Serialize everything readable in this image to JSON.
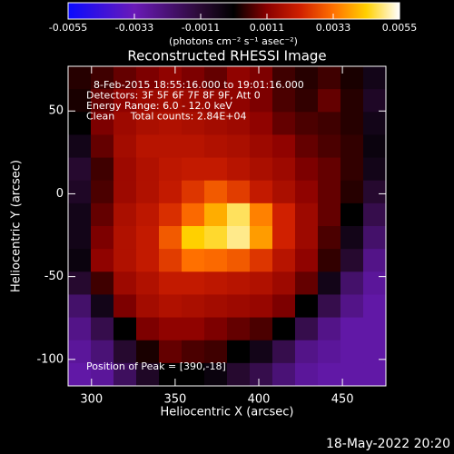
{
  "chart_data": {
    "type": "heatmap",
    "title": "Reconstructed RHESSI Image",
    "x_label": "Heliocentric X (arcsec)",
    "y_label": "Heliocentric Y (arcsec)",
    "annotations": [
      "8-Feb-2015 18:55:16.000 to 19:01:16.000",
      "Detectors: 3F 5F 6F 7F 8F 9F, Att 0",
      "Energy Range: 6.0 - 12.0 keV",
      "Clean     Total counts: 2.84E+04"
    ],
    "peak_label": "Position of Peak = [390,-18]",
    "timestamp": "18-May-2022 20:20",
    "xlim": [
      286,
      476
    ],
    "ylim": [
      -116,
      77
    ],
    "xticks": [
      300,
      350,
      400,
      450
    ],
    "yticks": [
      50,
      0,
      -50,
      -100
    ],
    "colorbar": {
      "label": "(photons cm⁻² s⁻¹ asec⁻²)",
      "range": [
        -0.0055,
        0.0055
      ],
      "ticks": [
        -0.0055,
        -0.0033,
        -0.0011,
        0.0011,
        0.0033,
        0.0055
      ],
      "stops": [
        [
          -0.0055,
          "#0a0aff"
        ],
        [
          -0.0033,
          "#6a1ab8"
        ],
        [
          -0.0011,
          "#2a0a34"
        ],
        [
          0,
          "#000000"
        ],
        [
          0.0011,
          "#8a0000"
        ],
        [
          0.0022,
          "#d02000"
        ],
        [
          0.0033,
          "#ff7000"
        ],
        [
          0.0044,
          "#ffd000"
        ],
        [
          0.0055,
          "#ffffff"
        ]
      ]
    },
    "z": [
      [
        0.0003,
        0.0005,
        0.0008,
        0.001,
        0.0012,
        0.001,
        0.0008,
        0.0012,
        0.001,
        0.0005,
        0.0003,
        0.0005,
        0.0002,
        -0.0005
      ],
      [
        0.0002,
        0.0008,
        0.0012,
        0.0014,
        0.0015,
        0.0014,
        0.0013,
        0.0012,
        0.001,
        0.0006,
        0.0004,
        0.0008,
        0.0003,
        -0.0008
      ],
      [
        0,
        0.001,
        0.0014,
        0.0016,
        0.0017,
        0.0016,
        0.0015,
        0.0014,
        0.0012,
        0.0008,
        0.0006,
        0.0005,
        0.0003,
        -0.0005
      ],
      [
        -0.0005,
        0.0008,
        0.0015,
        0.0018,
        0.0018,
        0.0018,
        0.0017,
        0.0016,
        0.0014,
        0.0012,
        0.0008,
        0.0006,
        0.0004,
        -0.0003
      ],
      [
        -0.001,
        0.0005,
        0.0014,
        0.0017,
        0.0019,
        0.002,
        0.002,
        0.0018,
        0.0016,
        0.0014,
        0.001,
        0.0008,
        0.0004,
        -0.0005
      ],
      [
        -0.0008,
        0.0006,
        0.0014,
        0.0017,
        0.002,
        0.0025,
        0.003,
        0.0026,
        0.002,
        0.0016,
        0.0012,
        0.0008,
        0.0003,
        -0.001
      ],
      [
        -0.0005,
        0.0008,
        0.0016,
        0.0019,
        0.0024,
        0.0032,
        0.004,
        0.0048,
        0.0035,
        0.0022,
        0.0014,
        0.0008,
        0,
        -0.0015
      ],
      [
        -0.0005,
        0.001,
        0.0017,
        0.002,
        0.003,
        0.0044,
        0.0046,
        0.005,
        0.0038,
        0.0022,
        0.0014,
        0.0006,
        -0.0005,
        -0.002
      ],
      [
        -0.0003,
        0.0012,
        0.0017,
        0.002,
        0.0026,
        0.0033,
        0.0032,
        0.003,
        0.0025,
        0.0018,
        0.0012,
        0.0004,
        -0.001,
        -0.0025
      ],
      [
        -0.001,
        0.0005,
        0.0014,
        0.0017,
        0.002,
        0.002,
        0.0019,
        0.0018,
        0.0017,
        0.0014,
        0.0008,
        -0.0005,
        -0.002,
        -0.0028
      ],
      [
        -0.002,
        -0.0005,
        0.001,
        0.0015,
        0.0017,
        0.0016,
        0.0015,
        0.0014,
        0.0013,
        0.001,
        0,
        -0.0015,
        -0.0025,
        -0.003
      ],
      [
        -0.0025,
        -0.0015,
        0,
        0.001,
        0.0012,
        0.0012,
        0.001,
        0.0008,
        0.0006,
        0,
        -0.0015,
        -0.0025,
        -0.003,
        -0.003
      ],
      [
        -0.0028,
        -0.0022,
        -0.001,
        0.0002,
        0.0008,
        0.0006,
        0.0005,
        0,
        -0.0005,
        -0.0015,
        -0.0025,
        -0.0028,
        -0.003,
        -0.003
      ],
      [
        -0.003,
        -0.0028,
        -0.0018,
        -0.0008,
        0,
        0,
        -0.0003,
        -0.001,
        -0.0015,
        -0.0022,
        -0.0028,
        -0.003,
        -0.003,
        -0.003
      ]
    ]
  }
}
